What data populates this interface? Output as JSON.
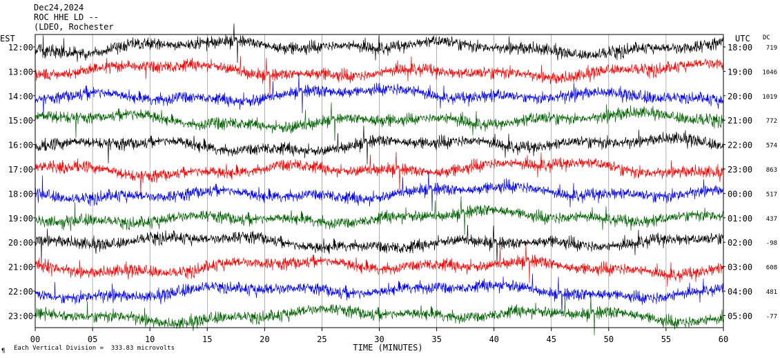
{
  "header": {
    "date": "Dec24,2024",
    "station": "ROC HHE LD --",
    "network": "(LDEO, Rochester"
  },
  "left_label": "EST",
  "right_label": "UTC",
  "dc_label": "DC",
  "x_axis_label": "TIME (MINUTES)",
  "footer_note": "Each Vertical Division =  333.83 microvolts",
  "footer_mark": "¶",
  "colors": {
    "black": "#000000",
    "red": "#ff0000",
    "blue": "#0000ff",
    "green": "#006400"
  },
  "chart_data": {
    "type": "line",
    "x_ticks": [
      "00",
      "05",
      "10",
      "15",
      "20",
      "25",
      "30",
      "35",
      "40",
      "45",
      "50",
      "55",
      "60"
    ],
    "x_range": [
      0,
      60
    ],
    "rows": [
      {
        "est": "12:00",
        "utc": "18:00",
        "dc": "719",
        "color": "black"
      },
      {
        "est": "13:00",
        "utc": "19:00",
        "dc": "1046",
        "color": "red"
      },
      {
        "est": "14:00",
        "utc": "20:00",
        "dc": "1019",
        "color": "blue"
      },
      {
        "est": "15:00",
        "utc": "21:00",
        "dc": "772",
        "color": "green"
      },
      {
        "est": "16:00",
        "utc": "22:00",
        "dc": "574",
        "color": "black"
      },
      {
        "est": "17:00",
        "utc": "23:00",
        "dc": "863",
        "color": "red"
      },
      {
        "est": "18:00",
        "utc": "00:00",
        "dc": "517",
        "color": "blue"
      },
      {
        "est": "19:00",
        "utc": "01:00",
        "dc": "437",
        "color": "green"
      },
      {
        "est": "20:00",
        "utc": "02:00",
        "dc": "-98",
        "color": "black"
      },
      {
        "est": "21:00",
        "utc": "03:00",
        "dc": "608",
        "color": "red"
      },
      {
        "est": "22:00",
        "utc": "04:00",
        "dc": "481",
        "color": "blue"
      },
      {
        "est": "23:00",
        "utc": "05:00",
        "dc": "-77",
        "color": "green"
      }
    ]
  }
}
